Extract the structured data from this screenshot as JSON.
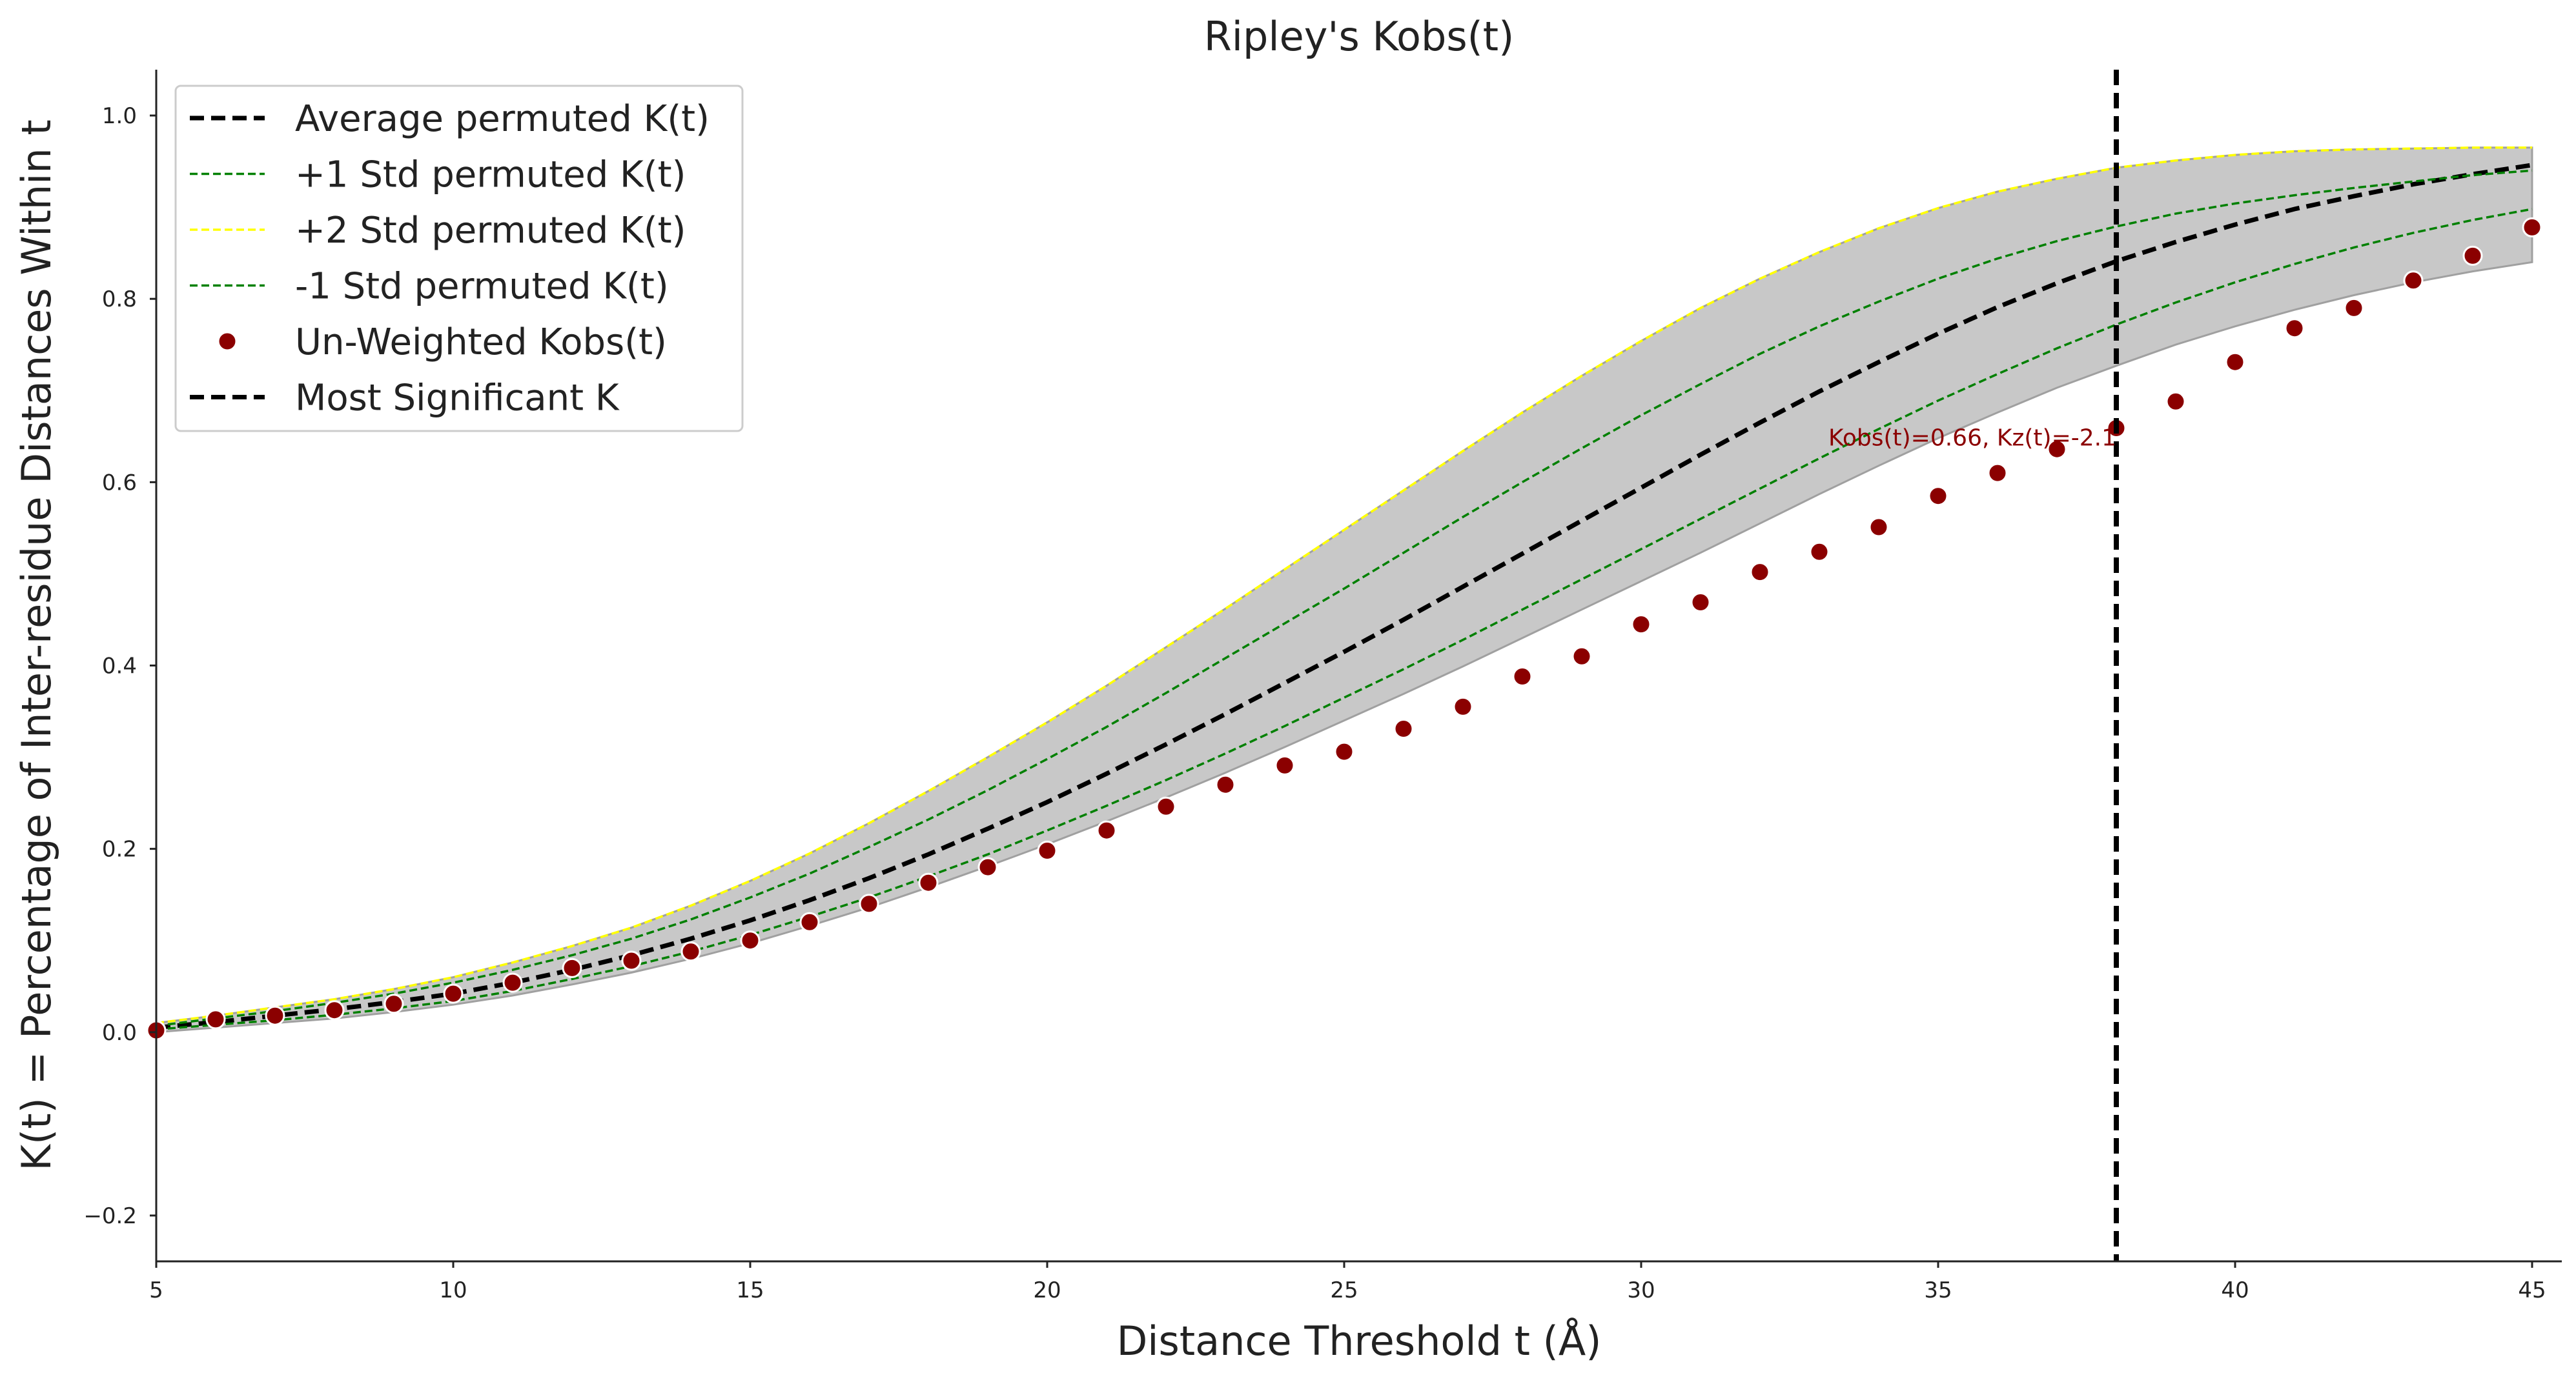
{
  "chart_data": {
    "type": "line",
    "title": "Ripley's Kobs(t)",
    "xlabel": "Distance Threshold t (Å)",
    "ylabel": "K(t) = Percentage of Inter-residue Distances Within t",
    "xlim": [
      5,
      45.5
    ],
    "ylim": [
      -0.25,
      1.05
    ],
    "xticks": [
      5,
      10,
      15,
      20,
      25,
      30,
      35,
      40,
      45
    ],
    "yticks": [
      -0.2,
      0.0,
      0.2,
      0.4,
      0.6,
      0.8,
      1.0
    ],
    "ytick_labels": [
      "−0.2",
      "0.0",
      "0.2",
      "0.4",
      "0.6",
      "0.8",
      "1.0"
    ],
    "grid": false,
    "legend_position": "top-left",
    "x": [
      5,
      6,
      7,
      8,
      9,
      10,
      11,
      12,
      13,
      14,
      15,
      16,
      17,
      18,
      19,
      20,
      21,
      22,
      23,
      24,
      25,
      26,
      27,
      28,
      29,
      30,
      31,
      32,
      33,
      34,
      35,
      36,
      37,
      38,
      39,
      40,
      41,
      42,
      43,
      44,
      45
    ],
    "band": {
      "lower": [
        0.0,
        0.005,
        0.01,
        0.015,
        0.022,
        0.03,
        0.04,
        0.052,
        0.065,
        0.08,
        0.097,
        0.116,
        0.136,
        0.158,
        0.181,
        0.205,
        0.23,
        0.256,
        0.283,
        0.311,
        0.34,
        0.369,
        0.399,
        0.43,
        0.461,
        0.492,
        0.523,
        0.555,
        0.587,
        0.618,
        0.648,
        0.676,
        0.703,
        0.727,
        0.75,
        0.77,
        0.788,
        0.804,
        0.818,
        0.83,
        0.84
      ],
      "upper": [
        0.01,
        0.018,
        0.027,
        0.036,
        0.047,
        0.06,
        0.076,
        0.094,
        0.114,
        0.138,
        0.165,
        0.195,
        0.228,
        0.263,
        0.3,
        0.338,
        0.378,
        0.42,
        0.462,
        0.505,
        0.548,
        0.591,
        0.634,
        0.676,
        0.716,
        0.754,
        0.79,
        0.822,
        0.851,
        0.877,
        0.899,
        0.917,
        0.931,
        0.943,
        0.951,
        0.957,
        0.961,
        0.963,
        0.964,
        0.965,
        0.965
      ]
    },
    "series": [
      {
        "name": "Average permuted K(t)",
        "style": "dashed",
        "color": "#000000",
        "values": [
          0.005,
          0.011,
          0.018,
          0.025,
          0.033,
          0.042,
          0.054,
          0.068,
          0.084,
          0.102,
          0.122,
          0.144,
          0.168,
          0.194,
          0.222,
          0.251,
          0.282,
          0.314,
          0.347,
          0.381,
          0.415,
          0.45,
          0.486,
          0.522,
          0.558,
          0.594,
          0.63,
          0.665,
          0.699,
          0.731,
          0.762,
          0.791,
          0.817,
          0.841,
          0.862,
          0.881,
          0.898,
          0.912,
          0.925,
          0.936,
          0.946
        ]
      },
      {
        "name": "+1 Std permuted K(t)",
        "style": "dashed-thin",
        "color": "#008000",
        "values": [
          0.007,
          0.015,
          0.023,
          0.032,
          0.042,
          0.054,
          0.068,
          0.084,
          0.102,
          0.123,
          0.147,
          0.173,
          0.202,
          0.232,
          0.264,
          0.298,
          0.333,
          0.37,
          0.408,
          0.446,
          0.484,
          0.523,
          0.562,
          0.6,
          0.637,
          0.673,
          0.707,
          0.74,
          0.77,
          0.797,
          0.822,
          0.844,
          0.863,
          0.879,
          0.893,
          0.904,
          0.913,
          0.921,
          0.928,
          0.935,
          0.94
        ]
      },
      {
        "name": "+2 Std permuted K(t)",
        "style": "dashed-thin",
        "color": "#ffff00",
        "values": [
          0.01,
          0.018,
          0.027,
          0.036,
          0.047,
          0.06,
          0.076,
          0.094,
          0.114,
          0.138,
          0.165,
          0.195,
          0.228,
          0.263,
          0.3,
          0.338,
          0.378,
          0.42,
          0.462,
          0.505,
          0.548,
          0.591,
          0.634,
          0.676,
          0.716,
          0.754,
          0.79,
          0.822,
          0.851,
          0.877,
          0.899,
          0.917,
          0.931,
          0.943,
          0.951,
          0.957,
          0.961,
          0.963,
          0.964,
          0.965,
          0.965
        ]
      },
      {
        "name": "-1 Std permuted K(t)",
        "style": "dashed-thin",
        "color": "#008000",
        "values": [
          0.003,
          0.008,
          0.013,
          0.019,
          0.026,
          0.034,
          0.045,
          0.058,
          0.072,
          0.088,
          0.106,
          0.126,
          0.147,
          0.17,
          0.194,
          0.22,
          0.247,
          0.275,
          0.304,
          0.334,
          0.365,
          0.396,
          0.428,
          0.461,
          0.494,
          0.527,
          0.56,
          0.593,
          0.626,
          0.658,
          0.689,
          0.718,
          0.746,
          0.772,
          0.796,
          0.818,
          0.838,
          0.856,
          0.872,
          0.886,
          0.898
        ]
      }
    ],
    "scatter": {
      "name": "Un-Weighted Kobs(t)",
      "color": "#8b0000",
      "values": [
        0.002,
        0.014,
        0.018,
        0.024,
        0.031,
        0.042,
        0.054,
        0.07,
        0.078,
        0.088,
        0.1,
        0.12,
        0.14,
        0.163,
        0.18,
        0.198,
        0.22,
        0.246,
        0.27,
        0.291,
        0.306,
        0.331,
        0.355,
        0.388,
        0.41,
        0.445,
        0.469,
        0.502,
        0.524,
        0.551,
        0.585,
        0.61,
        0.636,
        0.659,
        0.688,
        0.731,
        0.768,
        0.79,
        0.82,
        0.847,
        0.878
      ]
    },
    "vline": {
      "name": "Most Significant K",
      "x": 38,
      "color": "#000000"
    },
    "annotation": {
      "text": "Kobs(t)=0.66, Kz(t)=-2.1",
      "x": 38,
      "y": 0.64,
      "color": "#8b0000"
    },
    "legend": [
      {
        "label": "Average permuted K(t)",
        "marker": "dashed-thick",
        "color": "#000000"
      },
      {
        "label": "+1 Std permuted K(t)",
        "marker": "dashed-thin",
        "color": "#008000"
      },
      {
        "label": "+2 Std permuted K(t)",
        "marker": "dashed-thin",
        "color": "#ffff00"
      },
      {
        "label": "-1 Std permuted K(t)",
        "marker": "dashed-thin",
        "color": "#008000"
      },
      {
        "label": "Un-Weighted Kobs(t)",
        "marker": "dot",
        "color": "#8b0000"
      },
      {
        "label": "Most Significant K",
        "marker": "dashed-thick",
        "color": "#000000"
      }
    ],
    "band_color": "#c8c8c8"
  }
}
